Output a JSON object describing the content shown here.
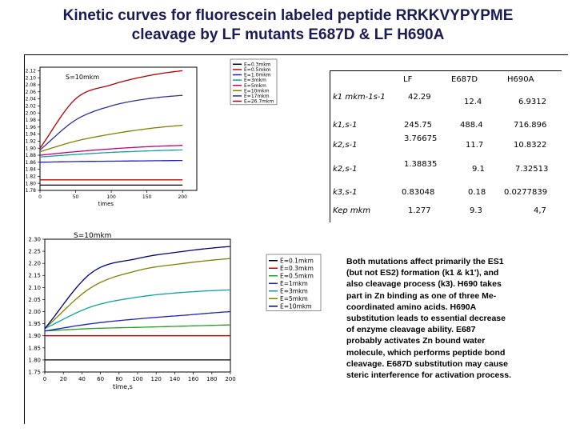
{
  "title": {
    "line1": "Kinetic curves for fluorescein labeled peptide RRKKVYPYPME",
    "line2": "cleavage by LF mutants E687D & LF H690A"
  },
  "chart_data": [
    {
      "type": "line",
      "title": "S=10mkm",
      "xlabel": "times",
      "xlim": [
        0,
        220
      ],
      "ylim": [
        1.78,
        2.13
      ],
      "x_ticks": [
        "0",
        "50",
        "100",
        "150",
        "200"
      ],
      "y_ticks": [
        "2.12",
        "2.10",
        "2.08",
        "2.06",
        "2.04",
        "2.02",
        "2.00",
        "1.98",
        "1.96",
        "1.94",
        "1.92",
        "1.90",
        "1.88",
        "1.86",
        "1.84",
        "1.82",
        "1.80",
        "1.78"
      ],
      "legend_position": "top-right",
      "series": [
        {
          "name": "E=0.3mkm",
          "color": "#000000",
          "x": [
            0,
            50,
            100,
            150,
            200
          ],
          "values": [
            1.795,
            1.795,
            1.795,
            1.795,
            1.795
          ]
        },
        {
          "name": "E=0.5mkm",
          "color": "#d00000",
          "x": [
            0,
            50,
            100,
            150,
            200
          ],
          "values": [
            1.81,
            1.81,
            1.81,
            1.81,
            1.81
          ]
        },
        {
          "name": "E=1.0mkm",
          "color": "#2020c0",
          "x": [
            0,
            50,
            100,
            150,
            200
          ],
          "values": [
            1.86,
            1.862,
            1.863,
            1.864,
            1.865
          ]
        },
        {
          "name": "E=3mkm",
          "color": "#10a0a0",
          "x": [
            0,
            50,
            100,
            150,
            200
          ],
          "values": [
            1.875,
            1.882,
            1.888,
            1.892,
            1.895
          ]
        },
        {
          "name": "E=5mkm",
          "color": "#c00080",
          "x": [
            0,
            50,
            100,
            150,
            200
          ],
          "values": [
            1.88,
            1.89,
            1.898,
            1.904,
            1.908
          ]
        },
        {
          "name": "E=10mkm",
          "color": "#808000",
          "x": [
            0,
            50,
            100,
            150,
            200
          ],
          "values": [
            1.89,
            1.92,
            1.94,
            1.955,
            1.965
          ]
        },
        {
          "name": "E=17mkm",
          "color": "#303090",
          "x": [
            0,
            50,
            100,
            150,
            200
          ],
          "values": [
            1.895,
            1.98,
            2.02,
            2.04,
            2.05
          ]
        },
        {
          "name": "E=26.7mkm",
          "color": "#b00000",
          "x": [
            0,
            50,
            100,
            150,
            200
          ],
          "values": [
            1.9,
            2.04,
            2.08,
            2.105,
            2.12
          ]
        }
      ]
    },
    {
      "type": "line",
      "title": "S=10mkm",
      "xlabel": "time,s",
      "xlim": [
        0,
        200
      ],
      "ylim": [
        1.75,
        2.3
      ],
      "x_ticks": [
        "0",
        "20",
        "40",
        "60",
        "80",
        "100",
        "120",
        "140",
        "160",
        "180",
        "200"
      ],
      "y_ticks": [
        "2.30",
        "2.25",
        "2.20",
        "2.15",
        "2.10",
        "2.05",
        "2.00",
        "1.95",
        "1.90",
        "1.85",
        "1.80",
        "1.75"
      ],
      "legend_position": "right",
      "series": [
        {
          "name": "E=0.1mkm",
          "color": "#000000",
          "x": [
            0,
            50,
            100,
            150,
            200
          ],
          "values": [
            1.8,
            1.8,
            1.8,
            1.8,
            1.8
          ]
        },
        {
          "name": "E=0.3mkm",
          "color": "#d00000",
          "x": [
            0,
            50,
            100,
            150,
            200
          ],
          "values": [
            1.9,
            1.9,
            1.9,
            1.9,
            1.9
          ]
        },
        {
          "name": "E=0.5mkm",
          "color": "#20a020",
          "x": [
            0,
            50,
            100,
            150,
            200
          ],
          "values": [
            1.92,
            1.93,
            1.935,
            1.94,
            1.945
          ]
        },
        {
          "name": "E=1mkm",
          "color": "#2020c0",
          "x": [
            0,
            50,
            100,
            150,
            200
          ],
          "values": [
            1.92,
            1.95,
            1.97,
            1.985,
            2.0
          ]
        },
        {
          "name": "E=3mkm",
          "color": "#10a0a0",
          "x": [
            0,
            50,
            100,
            150,
            200
          ],
          "values": [
            1.93,
            2.02,
            2.06,
            2.08,
            2.09
          ]
        },
        {
          "name": "E=5mkm",
          "color": "#808000",
          "x": [
            0,
            50,
            100,
            150,
            200
          ],
          "values": [
            1.93,
            2.1,
            2.17,
            2.2,
            2.22
          ]
        },
        {
          "name": "E=10mkm",
          "color": "#000080",
          "x": [
            0,
            50,
            100,
            150,
            200
          ],
          "values": [
            1.93,
            2.16,
            2.22,
            2.25,
            2.27
          ]
        }
      ]
    }
  ],
  "table": {
    "headers": [
      "LF",
      "E687D",
      "H690A"
    ],
    "rows": [
      {
        "label": "k1 mkm-1s-1",
        "values": [
          "42.29",
          "12.4",
          "6.9312"
        ]
      },
      {
        "label": "k1,s-1",
        "values": [
          "245.75",
          "488.4",
          "716.896"
        ]
      },
      {
        "label": "k2,s-1",
        "values": [
          "3.76675",
          "11.7",
          "10.8322"
        ]
      },
      {
        "label": "k2,s-1",
        "values": [
          "1.38835",
          "9.1",
          "7.32513"
        ]
      },
      {
        "label": "k3,s-1",
        "values": [
          "0.83048",
          "0.18",
          "0.0277839"
        ]
      },
      {
        "label": "Kep mkm",
        "values": [
          "1.277",
          "9.3",
          "4,7"
        ]
      }
    ]
  },
  "paragraph": [
    "Both mutations affect primarily the ES1",
    "(but not ES2) formation (k1 & k1'), and",
    "also cleavage process (k3). H690 takes",
    "part in Zn binding as one of three Me-",
    "coordinated amino acids. H690A",
    "substitution leads to essential decrease",
    "of enzyme cleavage ability. E687",
    "probably activates  Zn bound water",
    "molecule, which performs peptide bond",
    "cleavage. E687D substitution may cause",
    "steric interference for activation process."
  ]
}
